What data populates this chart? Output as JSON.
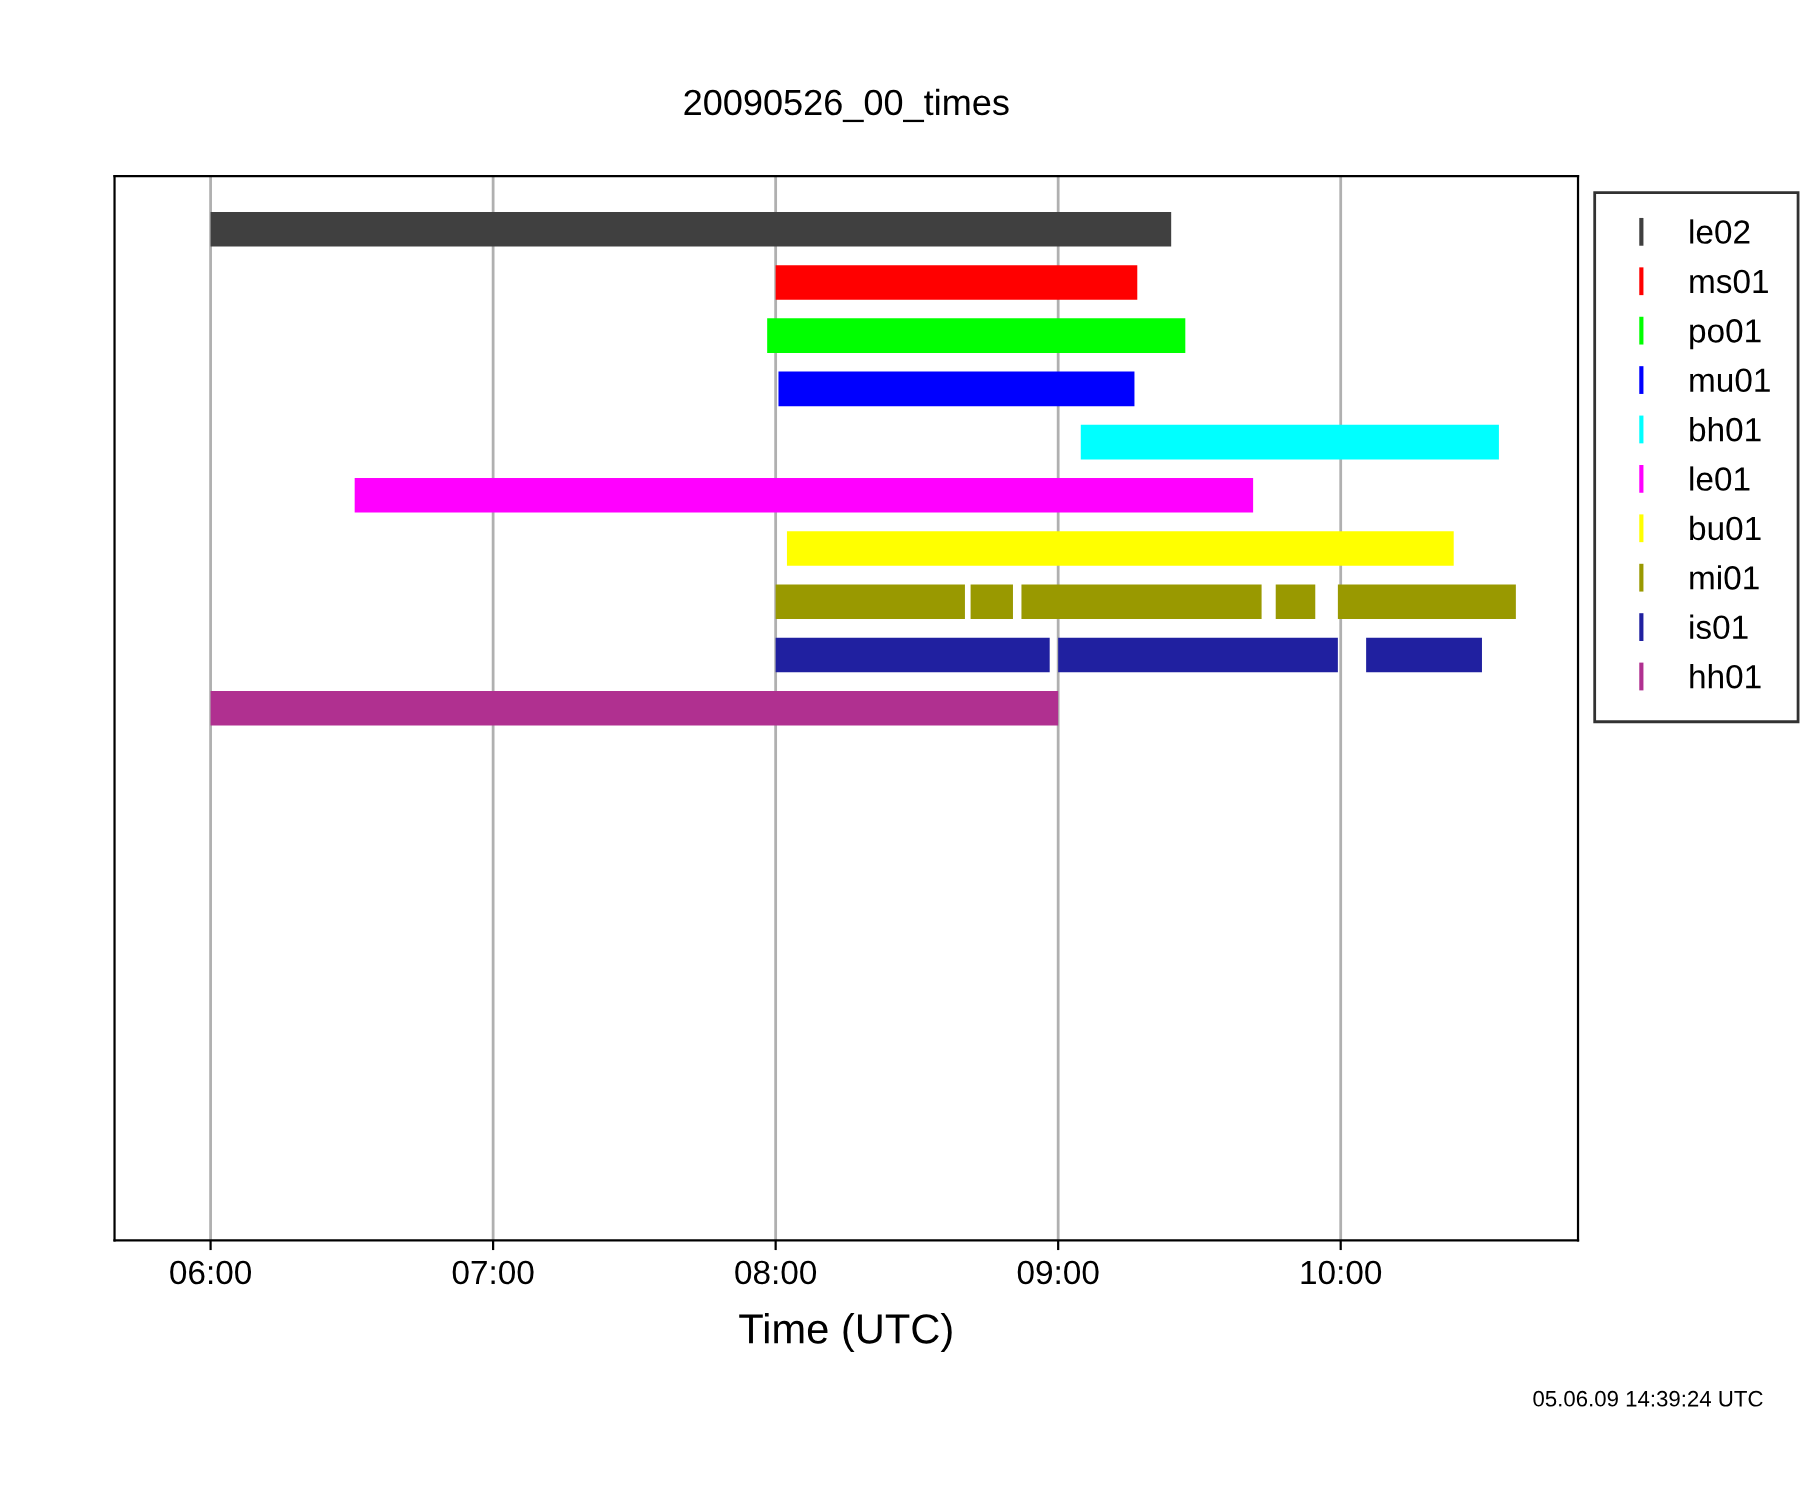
{
  "chart_data": {
    "type": "bar",
    "orientation": "horizontal",
    "title": "20090526_00_times",
    "xlabel": "Time (UTC)",
    "categories": [
      null,
      null,
      null,
      null,
      null,
      null,
      null,
      null,
      null,
      null,
      null,
      null,
      null,
      null,
      null,
      null,
      null,
      null,
      null
    ],
    "series": [
      {
        "name": "le02",
        "color": "#404040",
        "values": [
          3.4,
          null,
          null,
          null,
          null,
          null,
          null,
          null,
          null,
          null,
          null,
          null,
          null,
          null,
          null,
          null,
          null,
          null,
          null
        ],
        "base": [
          6.0,
          null,
          null,
          null,
          null,
          null,
          null,
          null,
          null,
          null,
          null,
          null,
          null,
          null,
          null,
          null,
          null,
          null,
          null
        ]
      },
      {
        "name": "ms01",
        "color": "#ff0000",
        "values": [
          null,
          1.28,
          null,
          null,
          null,
          null,
          null,
          null,
          null,
          null,
          null,
          null,
          null,
          null,
          null,
          null,
          null,
          null,
          null
        ],
        "base": [
          null,
          8.0,
          null,
          null,
          null,
          null,
          null,
          null,
          null,
          null,
          null,
          null,
          null,
          null,
          null,
          null,
          null,
          null,
          null
        ]
      },
      {
        "name": "po01",
        "color": "#00ff00",
        "values": [
          null,
          null,
          1.48,
          null,
          null,
          null,
          null,
          null,
          null,
          null,
          null,
          null,
          null,
          null,
          null,
          null,
          null,
          null,
          null
        ],
        "base": [
          null,
          null,
          7.97,
          null,
          null,
          null,
          null,
          null,
          null,
          null,
          null,
          null,
          null,
          null,
          null,
          null,
          null,
          null,
          null
        ]
      },
      {
        "name": "mu01",
        "color": "#0000ff",
        "values": [
          null,
          null,
          null,
          1.26,
          null,
          null,
          null,
          null,
          null,
          null,
          null,
          null,
          null,
          null,
          null,
          null,
          null,
          null,
          null
        ],
        "base": [
          null,
          null,
          null,
          8.01,
          null,
          null,
          null,
          null,
          null,
          null,
          null,
          null,
          null,
          null,
          null,
          null,
          null,
          null,
          null
        ]
      },
      {
        "name": "bh01",
        "color": "#00ffff",
        "values": [
          null,
          null,
          null,
          null,
          1.48,
          null,
          null,
          null,
          null,
          null,
          null,
          null,
          null,
          null,
          null,
          null,
          null,
          null,
          null
        ],
        "base": [
          null,
          null,
          null,
          null,
          9.08,
          null,
          null,
          null,
          null,
          null,
          null,
          null,
          null,
          null,
          null,
          null,
          null,
          null,
          null
        ]
      },
      {
        "name": "le01",
        "color": "#ff00ff",
        "values": [
          null,
          null,
          null,
          null,
          null,
          3.18,
          null,
          null,
          null,
          null,
          null,
          null,
          null,
          null,
          null,
          null,
          null,
          null,
          null
        ],
        "base": [
          null,
          null,
          null,
          null,
          null,
          6.51,
          null,
          null,
          null,
          null,
          null,
          null,
          null,
          null,
          null,
          null,
          null,
          null,
          null
        ]
      },
      {
        "name": "bu01",
        "color": "#ffff00",
        "values": [
          null,
          null,
          null,
          null,
          null,
          null,
          2.36,
          null,
          null,
          null,
          null,
          null,
          null,
          null,
          null,
          null,
          null,
          null,
          null
        ],
        "base": [
          null,
          null,
          null,
          null,
          null,
          null,
          8.04,
          null,
          null,
          null,
          null,
          null,
          null,
          null,
          null,
          null,
          null,
          null,
          null
        ]
      },
      {
        "name": "mi01",
        "color": "#999900",
        "values": [
          null,
          null,
          null,
          null,
          null,
          null,
          null,
          0.67,
          null,
          null,
          null,
          null,
          null,
          null,
          null,
          null,
          null,
          null,
          null
        ],
        "base": [
          null,
          null,
          null,
          null,
          null,
          null,
          null,
          8.0,
          null,
          null,
          null,
          null,
          null,
          null,
          null,
          null,
          null,
          null,
          null
        ]
      },
      {
        "color": "#999900",
        "values": [
          null,
          null,
          null,
          null,
          null,
          null,
          null,
          0.15,
          null,
          null,
          null,
          null,
          null,
          null,
          null,
          null,
          null,
          null,
          null
        ],
        "base": [
          null,
          null,
          null,
          null,
          null,
          null,
          null,
          8.69,
          null,
          null,
          null,
          null,
          null,
          null,
          null,
          null,
          null,
          null,
          null
        ]
      },
      {
        "color": "#999900",
        "values": [
          null,
          null,
          null,
          null,
          null,
          null,
          null,
          0.85,
          null,
          null,
          null,
          null,
          null,
          null,
          null,
          null,
          null,
          null,
          null
        ],
        "base": [
          null,
          null,
          null,
          null,
          null,
          null,
          null,
          8.87,
          null,
          null,
          null,
          null,
          null,
          null,
          null,
          null,
          null,
          null,
          null
        ]
      },
      {
        "color": "#999900",
        "values": [
          null,
          null,
          null,
          null,
          null,
          null,
          null,
          0.14,
          null,
          null,
          null,
          null,
          null,
          null,
          null,
          null,
          null,
          null,
          null
        ],
        "base": [
          null,
          null,
          null,
          null,
          null,
          null,
          null,
          9.77,
          null,
          null,
          null,
          null,
          null,
          null,
          null,
          null,
          null,
          null,
          null
        ]
      },
      {
        "color": "#999900",
        "values": [
          null,
          null,
          null,
          null,
          null,
          null,
          null,
          0.63,
          null,
          null,
          null,
          null,
          null,
          null,
          null,
          null,
          null,
          null,
          null
        ],
        "base": [
          null,
          null,
          null,
          null,
          null,
          null,
          null,
          9.99,
          null,
          null,
          null,
          null,
          null,
          null,
          null,
          null,
          null,
          null,
          null
        ]
      },
      {
        "name": "is01",
        "color": "#2020a0",
        "values": [
          null,
          null,
          null,
          null,
          null,
          null,
          null,
          null,
          0.97,
          null,
          null,
          null,
          null,
          null,
          null,
          null,
          null,
          null,
          null
        ],
        "base": [
          null,
          null,
          null,
          null,
          null,
          null,
          null,
          null,
          8.0,
          null,
          null,
          null,
          null,
          null,
          null,
          null,
          null,
          null,
          null
        ]
      },
      {
        "color": "#2020a0",
        "values": [
          null,
          null,
          null,
          null,
          null,
          null,
          null,
          null,
          0.99,
          null,
          null,
          null,
          null,
          null,
          null,
          null,
          null,
          null,
          null
        ],
        "base": [
          null,
          null,
          null,
          null,
          null,
          null,
          null,
          null,
          9.0,
          null,
          null,
          null,
          null,
          null,
          null,
          null,
          null,
          null,
          null
        ]
      },
      {
        "color": "#2020a0",
        "values": [
          null,
          null,
          null,
          null,
          null,
          null,
          null,
          null,
          0.41,
          null,
          null,
          null,
          null,
          null,
          null,
          null,
          null,
          null,
          null
        ],
        "base": [
          null,
          null,
          null,
          null,
          null,
          null,
          null,
          null,
          10.09,
          null,
          null,
          null,
          null,
          null,
          null,
          null,
          null,
          null,
          null
        ]
      },
      {
        "name": "hh01",
        "color": "#b03090",
        "values": [
          null,
          null,
          null,
          null,
          null,
          null,
          null,
          null,
          null,
          3.0,
          null,
          null,
          null,
          null,
          null,
          null,
          null,
          null,
          null
        ],
        "base": [
          null,
          null,
          null,
          null,
          null,
          null,
          null,
          null,
          null,
          6.0,
          null,
          null,
          null,
          null,
          null,
          null,
          null,
          null,
          null
        ]
      }
    ],
    "xlim": [
      5.66,
      10.84
    ],
    "xticks": [
      {
        "value": 6,
        "label": "06:00"
      },
      {
        "value": 7,
        "label": "07:00"
      },
      {
        "value": 8,
        "label": "08:00"
      },
      {
        "value": 9,
        "label": "09:00"
      },
      {
        "value": 10,
        "label": "10:00"
      }
    ],
    "grid": "x",
    "legend": "top right",
    "tick_labels": "x",
    "annotations": [
      "05.06.09 14:39:24 UTC"
    ]
  }
}
